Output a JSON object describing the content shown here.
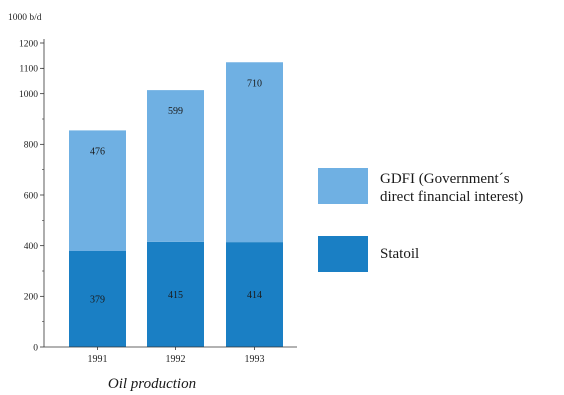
{
  "chart_data": {
    "type": "bar",
    "stacked": true,
    "title": "Oil production",
    "unit_label": "1000 b/d",
    "categories": [
      "1991",
      "1992",
      "1993"
    ],
    "series": [
      {
        "name": "Statoil",
        "values": [
          379,
          415,
          414
        ],
        "color": "#1a7fc4",
        "value_labels": [
          "379",
          "415",
          "414"
        ]
      },
      {
        "name": "GDFI (Government´s direct financial interest)",
        "values": [
          476,
          599,
          710
        ],
        "color": "#6fb0e3",
        "value_labels": [
          "476",
          "599",
          "710"
        ]
      }
    ],
    "legend": [
      {
        "lines": [
          "GDFI (Government´s",
          "direct financial interest)"
        ],
        "color": "#6fb0e3"
      },
      {
        "lines": [
          "Statoil"
        ],
        "color": "#1a7fc4"
      }
    ],
    "legend_position": "right",
    "ylim": [
      0,
      1200
    ],
    "yticks": [
      0,
      200,
      400,
      600,
      800,
      1000,
      1100,
      1200
    ],
    "ytick_labels": [
      "0",
      "200",
      "400",
      "600",
      "800",
      "1000",
      "1100",
      "1200"
    ],
    "grid": false
  }
}
